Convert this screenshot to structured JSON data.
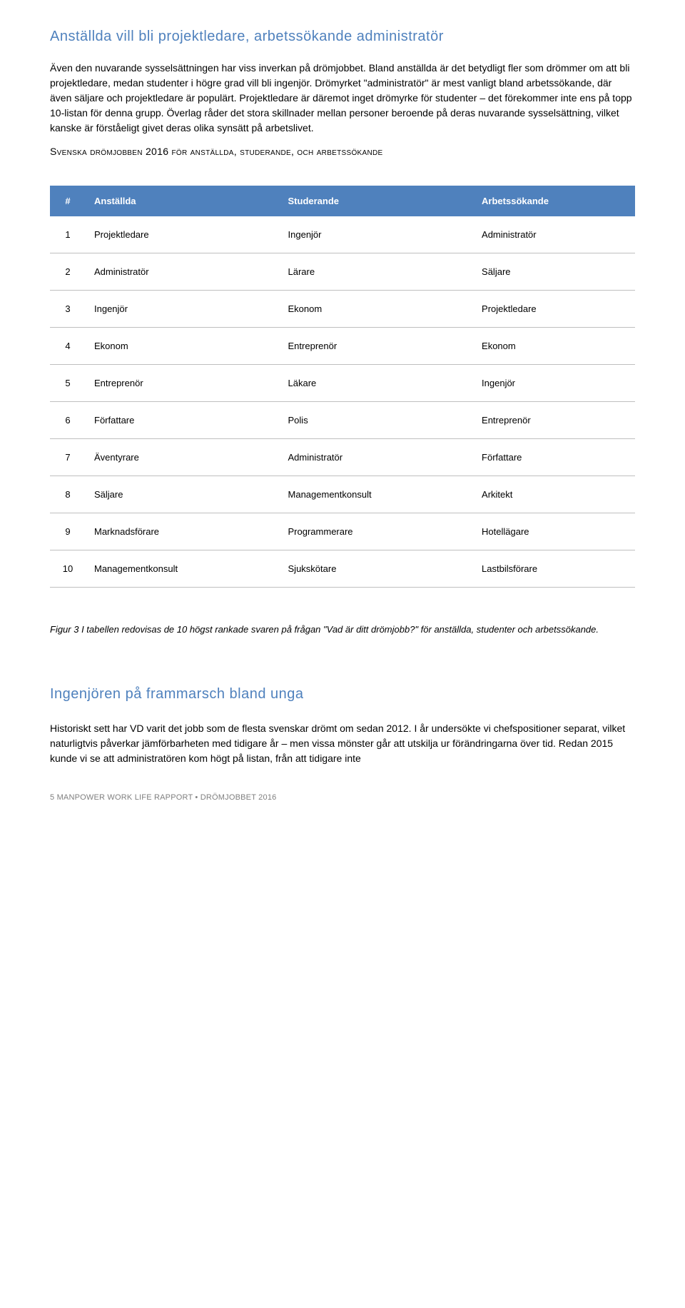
{
  "section1": {
    "title": "Anställda vill bli projektledare, arbetssökande administratör",
    "paragraph": "Även den nuvarande sysselsättningen har viss inverkan på drömjobbet. Bland anställda är det betydligt fler som drömmer om att bli projektledare, medan studenter i högre grad vill bli ingenjör. Drömyrket \"administratör\" är mest vanligt bland arbetssökande, där även säljare och projektledare är populärt. Projektledare är däremot inget drömyrke för studenter – det förekommer inte ens på topp 10-listan för denna grupp. Överlag råder det stora skillnader mellan personer beroende på deras nuvarande sysselsättning, vilket kanske är förståeligt givet deras olika synsätt på arbetslivet.",
    "subtitle": "Svenska drömjobben 2016 för anställda, studerande, och arbetssökande"
  },
  "table": {
    "header_bg": "#4f81bd",
    "header_fg": "#ffffff",
    "border_color": "#bfbfbf",
    "font_size": 13,
    "columns": [
      "#",
      "Anställda",
      "Studerande",
      "Arbetssökande"
    ],
    "rows": [
      [
        "1",
        "Projektledare",
        "Ingenjör",
        "Administratör"
      ],
      [
        "2",
        "Administratör",
        "Lärare",
        "Säljare"
      ],
      [
        "3",
        "Ingenjör",
        "Ekonom",
        "Projektledare"
      ],
      [
        "4",
        "Ekonom",
        "Entreprenör",
        "Ekonom"
      ],
      [
        "5",
        "Entreprenör",
        "Läkare",
        "Ingenjör"
      ],
      [
        "6",
        "Författare",
        "Polis",
        "Entreprenör"
      ],
      [
        "7",
        "Äventyrare",
        "Administratör",
        "Författare"
      ],
      [
        "8",
        "Säljare",
        "Managementkonsult",
        "Arkitekt"
      ],
      [
        "9",
        "Marknadsförare",
        "Programmerare",
        "Hotellägare"
      ],
      [
        "10",
        "Managementkonsult",
        "Sjukskötare",
        "Lastbilsförare"
      ]
    ]
  },
  "caption": "Figur 3 I tabellen redovisas de 10 högst rankade svaren på frågan \"Vad är ditt drömjobb?\" för anställda, studenter och arbetssökande.",
  "section2": {
    "title": "Ingenjören på frammarsch bland unga",
    "paragraph": "Historiskt sett har VD varit det jobb som de flesta svenskar drömt om sedan 2012. I år undersökte vi chefspositioner separat, vilket naturligtvis påverkar jämförbarheten med tidigare år – men vissa mönster går att utskilja ur förändringarna över tid. Redan 2015 kunde vi se att administratören kom högt på listan, från att tidigare inte"
  },
  "footer": "5  MANPOWER WORK LIFE RAPPORT • DRÖMJOBBET 2016",
  "colors": {
    "accent": "#4f81bd",
    "text": "#000000",
    "footer_text": "#7f7f7f",
    "background": "#ffffff"
  }
}
